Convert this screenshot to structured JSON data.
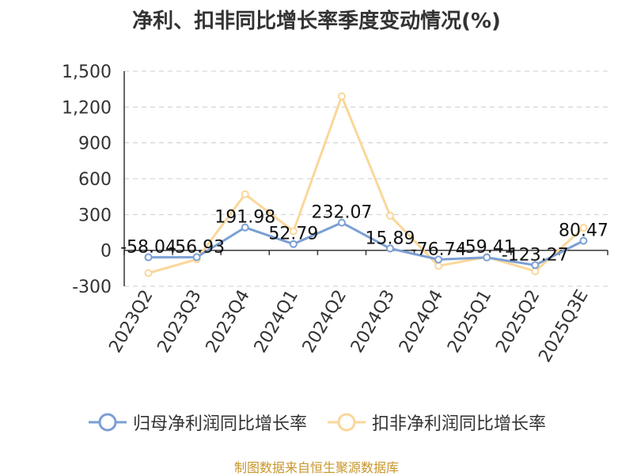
{
  "title": "净利、扣非同比增长率季度变动情况(%)",
  "source": "制图数据来自恒生聚源数据库",
  "chart_data": {
    "type": "line",
    "title": "净利、扣非同比增长率季度变动情况(%)",
    "categories": [
      "2023Q2",
      "2023Q3",
      "2023Q4",
      "2024Q1",
      "2024Q2",
      "2024Q3",
      "2024Q4",
      "2025Q1",
      "2025Q2",
      "2025Q3E"
    ],
    "ylim": [
      -300,
      1500
    ],
    "yticks": [
      -300,
      0,
      300,
      600,
      900,
      1200,
      1500
    ],
    "ytick_labels": [
      "-300",
      "0",
      "300",
      "600",
      "900",
      "1,200",
      "1,500"
    ],
    "grid": true,
    "legend_position": "bottom",
    "series": [
      {
        "name": "归母净利润同比增长率",
        "color": "#7b9fd4",
        "values": [
          -58.04,
          -56.93,
          191.98,
          52.79,
          232.07,
          15.89,
          -76.74,
          -59.41,
          -123.27,
          80.47
        ],
        "labels": [
          "-58.04",
          "-56.93",
          "191.98",
          "52.79",
          "232.07",
          "15.89",
          "-76.74",
          "-59.41",
          "-123.27",
          "80.47"
        ]
      },
      {
        "name": "扣非净利润同比增长率",
        "color": "#fad79a",
        "values": [
          -190,
          -75,
          470,
          160,
          1290,
          290,
          -130,
          -55,
          -175,
          190
        ]
      }
    ]
  }
}
